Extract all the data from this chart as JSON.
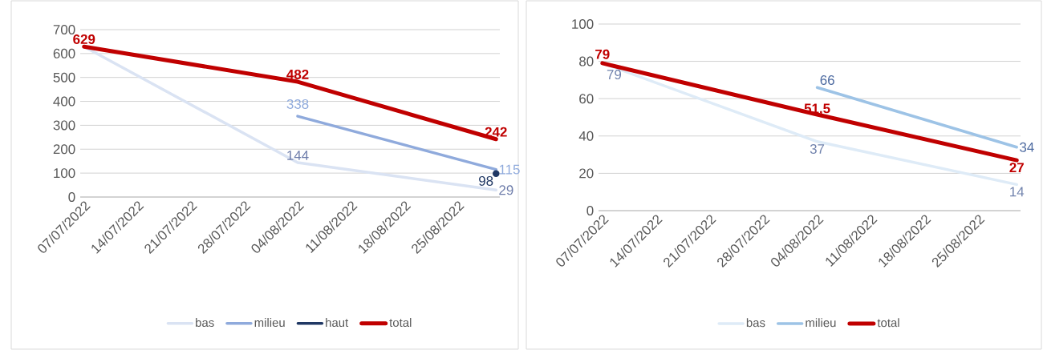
{
  "chart_data": [
    {
      "type": "line",
      "x": [
        "2022-07-07",
        "2022-08-04",
        "2022-08-30"
      ],
      "xlim": [
        "2022-07-06T12:00",
        "2022-08-30T12:00"
      ],
      "xticks": [
        {
          "value": "2022-07-07",
          "label": "07/07/2022"
        },
        {
          "value": "2022-07-14",
          "label": "14/07/2022"
        },
        {
          "value": "2022-07-21",
          "label": "21/07/2022"
        },
        {
          "value": "2022-07-28",
          "label": "28/07/2022"
        },
        {
          "value": "2022-08-04",
          "label": "04/08/2022"
        },
        {
          "value": "2022-08-11",
          "label": "11/08/2022"
        },
        {
          "value": "2022-08-18",
          "label": "18/08/2022"
        },
        {
          "value": "2022-08-25",
          "label": "25/08/2022"
        }
      ],
      "ylim": [
        0,
        700
      ],
      "yticks": [
        0,
        100,
        200,
        300,
        400,
        500,
        600,
        700
      ],
      "grid": "y",
      "legend": "bottom",
      "line_style": "solid",
      "marker": "none",
      "series": [
        {
          "name": "bas",
          "color": "#dae3f3",
          "values": [
            629,
            144,
            29
          ],
          "value_labels": [
            null,
            "144",
            "29"
          ]
        },
        {
          "name": "milieu",
          "color": "#8faadc",
          "x": [
            "2022-08-04",
            "2022-08-30"
          ],
          "values": [
            338,
            115
          ],
          "value_labels": [
            "338",
            "115"
          ]
        },
        {
          "name": "haut",
          "color": "#203864",
          "x": [
            "2022-08-30"
          ],
          "values": [
            98
          ],
          "value_labels": [
            "98"
          ],
          "marker": "circle"
        },
        {
          "name": "total",
          "color": "#c00000",
          "values": [
            629,
            482,
            242
          ],
          "value_labels": [
            "629",
            "482",
            "242"
          ]
        }
      ]
    },
    {
      "type": "line",
      "x": [
        "2022-07-07",
        "2022-08-04",
        "2022-08-30"
      ],
      "xlim": [
        "2022-07-06T12:00",
        "2022-08-30T12:00"
      ],
      "xticks": [
        {
          "value": "2022-07-07",
          "label": "07/07/2022"
        },
        {
          "value": "2022-07-14",
          "label": "14/07/2022"
        },
        {
          "value": "2022-07-21",
          "label": "21/07/2022"
        },
        {
          "value": "2022-07-28",
          "label": "28/07/2022"
        },
        {
          "value": "2022-08-04",
          "label": "04/08/2022"
        },
        {
          "value": "2022-08-11",
          "label": "11/08/2022"
        },
        {
          "value": "2022-08-18",
          "label": "18/08/2022"
        },
        {
          "value": "2022-08-25",
          "label": "25/08/2022"
        }
      ],
      "ylim": [
        0,
        100
      ],
      "yticks": [
        0,
        20,
        40,
        60,
        80,
        100
      ],
      "grid": "y",
      "legend": "bottom",
      "line_style": "solid",
      "marker": "none",
      "series": [
        {
          "name": "bas",
          "color": "#deebf7",
          "values": [
            79,
            37,
            14
          ],
          "value_labels": [
            "79",
            "37",
            "14"
          ]
        },
        {
          "name": "milieu",
          "color": "#9dc3e6",
          "x": [
            "2022-08-04",
            "2022-08-30"
          ],
          "values": [
            66,
            34
          ],
          "value_labels": [
            "66",
            "34"
          ]
        },
        {
          "name": "total",
          "color": "#c00000",
          "values": [
            79,
            51.5,
            27
          ],
          "value_labels": [
            "79",
            "51,5",
            "27"
          ]
        }
      ]
    }
  ]
}
